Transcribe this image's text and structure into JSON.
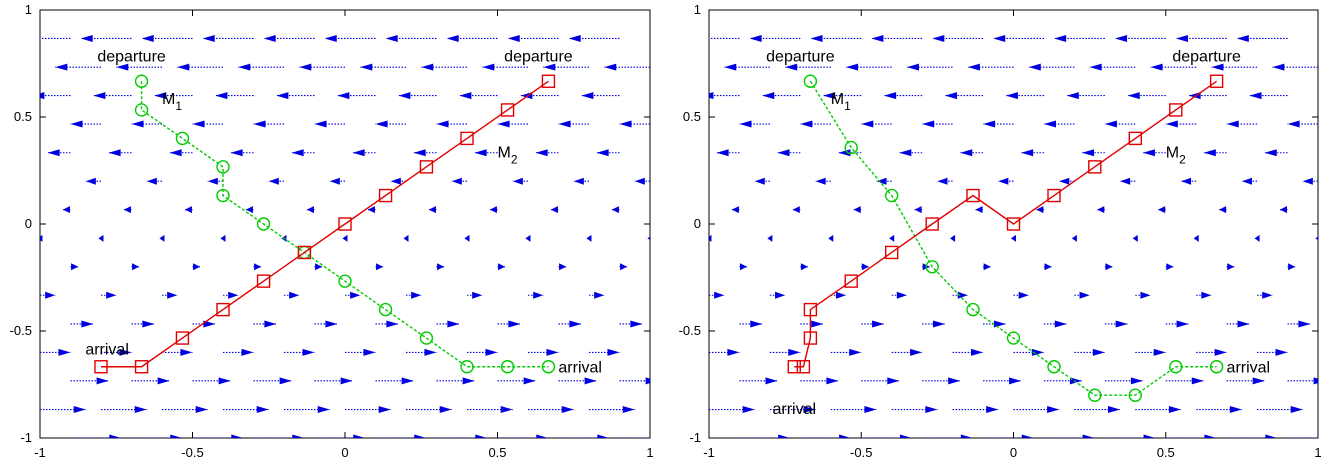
{
  "chart_data": [
    {
      "type": "line",
      "title": "",
      "xlim": [
        -1,
        1
      ],
      "ylim": [
        -1,
        1
      ],
      "x_ticks": [
        "-1",
        "-0.5",
        "0",
        "0.5",
        "1"
      ],
      "y_ticks": [
        "-1",
        "-0.5",
        "0",
        "0.5",
        "1"
      ],
      "grid": false,
      "vector_field": {
        "description_free": true,
        "rows_y": [
          0.867,
          0.733,
          0.6,
          0.467,
          0.333,
          0.2,
          0.067,
          -0.067,
          -0.2,
          -0.333,
          -0.467,
          -0.6,
          -0.733,
          -0.867,
          -1.0
        ],
        "u_at_row": [
          -0.2,
          -0.18,
          -0.15,
          -0.12,
          -0.09,
          -0.06,
          -0.03,
          -0.01,
          0.03,
          0.06,
          0.09,
          0.12,
          0.15,
          0.18,
          0.2
        ],
        "color": "#0000e0"
      },
      "series": [
        {
          "marker": "circle",
          "color": "#00cc00",
          "dashed": true,
          "x": [
            -0.667,
            -0.667,
            -0.533,
            -0.4,
            -0.4,
            -0.267,
            -0.133,
            0.0,
            0.133,
            0.267,
            0.4,
            0.533,
            0.667
          ],
          "y": [
            0.667,
            0.533,
            0.4,
            0.267,
            0.133,
            0.0,
            -0.133,
            -0.267,
            -0.4,
            -0.533,
            -0.667,
            -0.667,
            -0.667
          ]
        },
        {
          "marker": "square",
          "color": "#e00000",
          "dashed": false,
          "x": [
            -0.8,
            -0.667,
            -0.533,
            -0.4,
            -0.267,
            -0.133,
            0.0,
            0.133,
            0.267,
            0.4,
            0.533,
            0.667
          ],
          "y": [
            -0.667,
            -0.667,
            -0.533,
            -0.4,
            -0.267,
            -0.133,
            0.0,
            0.133,
            0.267,
            0.4,
            0.533,
            0.667
          ]
        }
      ],
      "annotations": [
        {
          "text": "departure",
          "x": -0.667,
          "y": 0.667,
          "anchor": "end-above"
        },
        {
          "text": "departure",
          "x": 0.667,
          "y": 0.667,
          "anchor": "end-above"
        },
        {
          "text": "M",
          "sub": "1",
          "x": -0.6,
          "y": 0.56
        },
        {
          "text": "M",
          "sub": "2",
          "x": 0.5,
          "y": 0.31
        },
        {
          "text": "arrival",
          "x": -0.78,
          "y": -0.62
        },
        {
          "text": "arrival",
          "x": 0.68,
          "y": -0.67
        }
      ]
    },
    {
      "type": "line",
      "title": "",
      "xlim": [
        -1,
        1
      ],
      "ylim": [
        -1,
        1
      ],
      "x_ticks": [
        "-1",
        "-0.5",
        "0",
        "0.5",
        "1"
      ],
      "y_ticks": [
        "-1",
        "-0.5",
        "0",
        "0.5",
        "1"
      ],
      "grid": false,
      "series": [
        {
          "marker": "circle",
          "color": "#00cc00",
          "dashed": true,
          "x": [
            -0.667,
            -0.533,
            -0.4,
            -0.267,
            -0.133,
            0.0,
            0.133,
            0.267,
            0.4,
            0.533,
            0.667
          ],
          "y": [
            0.667,
            0.357,
            0.133,
            -0.2,
            -0.4,
            -0.533,
            -0.667,
            -0.8,
            -0.8,
            -0.667,
            -0.667
          ]
        },
        {
          "marker": "square",
          "color": "#e00000",
          "dashed": false,
          "x": [
            -0.72,
            -0.69,
            -0.667,
            -0.667,
            -0.533,
            -0.4,
            -0.267,
            -0.133,
            0.0,
            0.133,
            0.267,
            0.4,
            0.533,
            0.667
          ],
          "y": [
            -0.667,
            -0.667,
            -0.533,
            -0.4,
            -0.267,
            -0.133,
            0.0,
            0.133,
            0.0,
            0.133,
            0.267,
            0.4,
            0.533,
            0.667
          ]
        }
      ],
      "annotations": [
        {
          "text": "departure",
          "x": -0.667,
          "y": 0.667,
          "anchor": "end-above"
        },
        {
          "text": "departure",
          "x": 0.667,
          "y": 0.667,
          "anchor": "end-above"
        },
        {
          "text": "M",
          "sub": "1",
          "x": -0.6,
          "y": 0.56
        },
        {
          "text": "M",
          "sub": "2",
          "x": 0.5,
          "y": 0.31
        },
        {
          "text": "arrival",
          "x": -0.72,
          "y": -0.73,
          "below": true
        },
        {
          "text": "arrival",
          "x": 0.68,
          "y": -0.67
        }
      ]
    }
  ]
}
